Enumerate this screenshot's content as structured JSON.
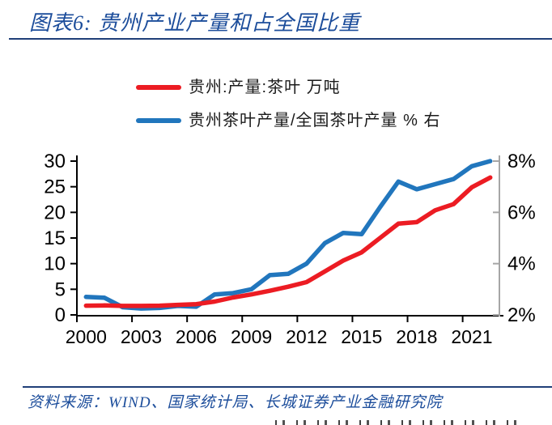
{
  "header": {
    "title": "图表6:  贵州产业产量和占全国比重"
  },
  "legend": {
    "items": [
      {
        "label": "贵州:产量:茶叶 万吨",
        "color": "#ec1c23"
      },
      {
        "label": "贵州茶叶产量/全国茶叶产量 % 右",
        "color": "#2176bd"
      }
    ]
  },
  "footer": {
    "source": "资料来源：WIND、国家统计局、长城证券产业金融研究院"
  },
  "colors": {
    "heading": "#1c4d9b",
    "rule": "#203f78",
    "axis": "#000000",
    "right_axis": "#a6a6a6",
    "series_red": "#ec1c23",
    "series_blue": "#2176bd"
  },
  "chart_data": {
    "type": "line",
    "title": "贵州产业产量和占全国比重",
    "x": [
      2000,
      2001,
      2002,
      2003,
      2004,
      2005,
      2006,
      2007,
      2008,
      2009,
      2010,
      2011,
      2012,
      2013,
      2014,
      2015,
      2016,
      2017,
      2018,
      2019,
      2020,
      2021,
      2022
    ],
    "series": [
      {
        "name": "贵州:产量:茶叶 万吨",
        "axis": "left",
        "color": "#ec1c23",
        "values": [
          1.8,
          1.85,
          1.75,
          1.75,
          1.8,
          1.95,
          2.1,
          2.6,
          3.4,
          4.0,
          4.7,
          5.5,
          6.4,
          8.5,
          10.6,
          12.2,
          15.0,
          17.8,
          18.1,
          20.4,
          21.6,
          24.9,
          26.8
        ]
      },
      {
        "name": "贵州茶叶产量/全国茶叶产量 % 右",
        "axis": "right",
        "color": "#2176bd",
        "values": [
          2.7,
          2.67,
          2.3,
          2.25,
          2.27,
          2.35,
          2.32,
          2.8,
          2.85,
          3.0,
          3.55,
          3.6,
          4.0,
          4.8,
          5.2,
          5.15,
          6.2,
          7.2,
          6.9,
          7.1,
          7.3,
          7.8,
          8.0
        ]
      }
    ],
    "left_axis": {
      "min": 0,
      "max": 30,
      "ticks": [
        0,
        5,
        10,
        15,
        20,
        25,
        30
      ],
      "tick_labels": [
        "0",
        "5",
        "10",
        "15",
        "20",
        "25",
        "30"
      ]
    },
    "right_axis": {
      "min": 2,
      "max": 8,
      "tick_values": [
        2,
        4,
        6,
        8
      ],
      "tick_labels": [
        "2%",
        "4%",
        "6%",
        "8%"
      ]
    },
    "x_tick_years": [
      2000,
      2003,
      2006,
      2009,
      2012,
      2015,
      2018,
      2021
    ],
    "x_tick_labels": [
      "2000",
      "2003",
      "2006",
      "2009",
      "2012",
      "2015",
      "2018",
      "2021"
    ],
    "legend_position": "top",
    "grid": false
  }
}
